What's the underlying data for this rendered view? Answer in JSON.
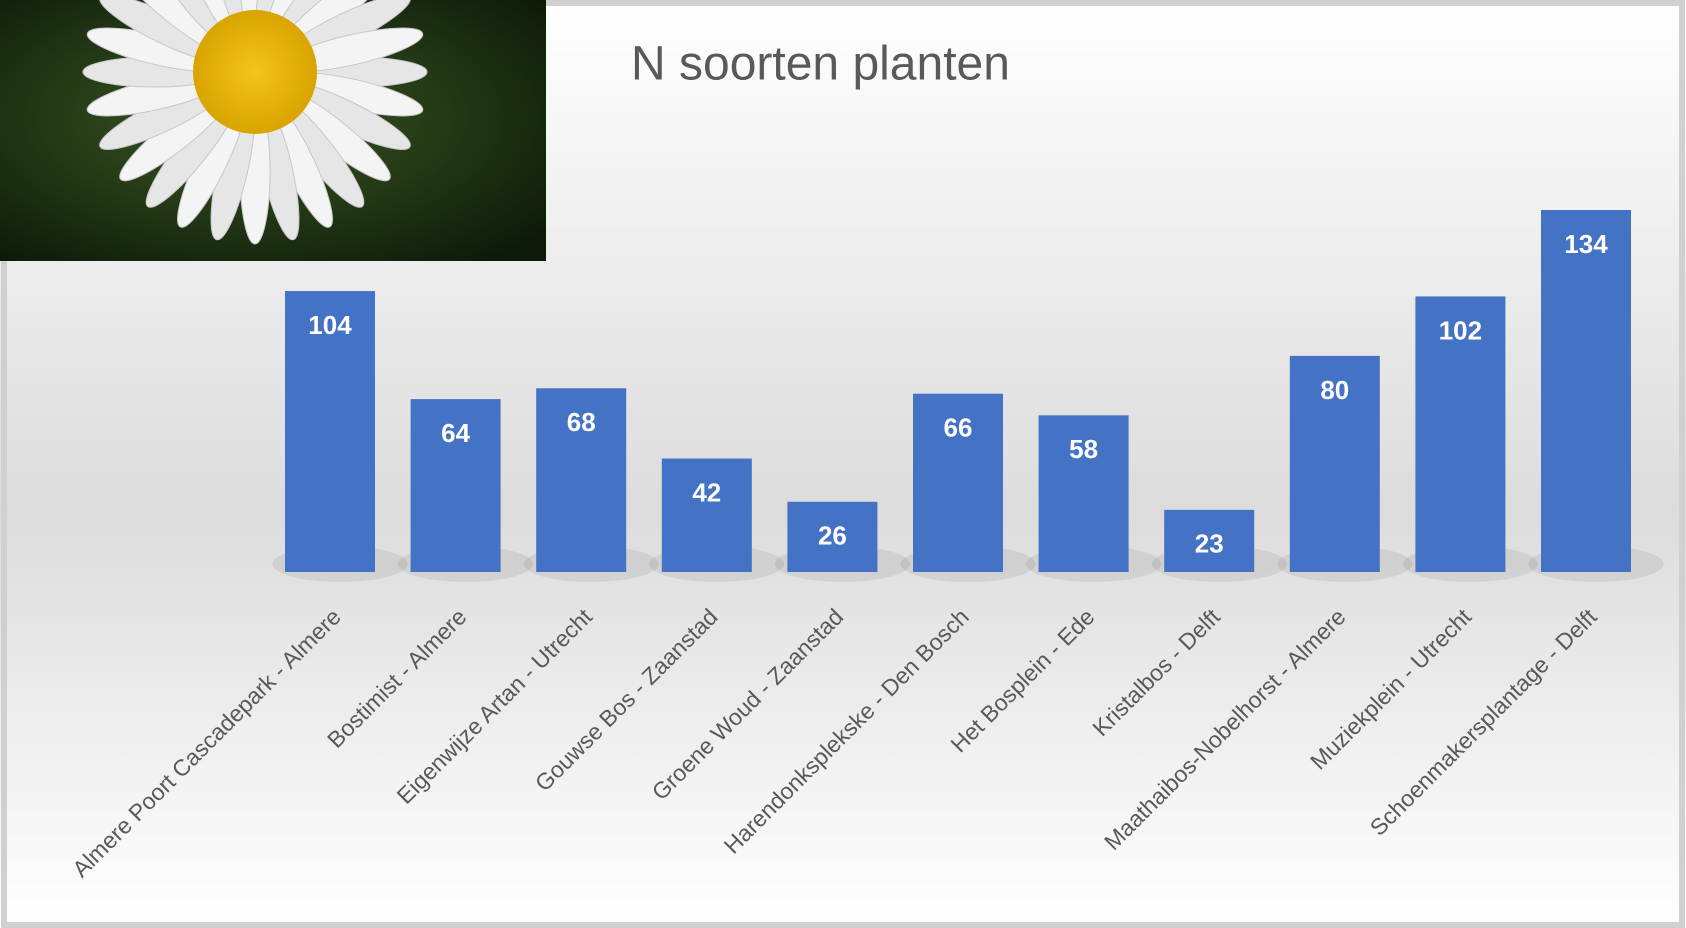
{
  "chart_data": {
    "type": "bar",
    "title": "N soorten planten",
    "categories": [
      "Almere Poort Cascadepark - Almere",
      "Bostimist - Almere",
      "Eigenwijze Artan - Utrecht",
      "Gouwse Bos - Zaanstad",
      "Groene Woud - Zaanstad",
      "Harendonksplekske - Den Bosch",
      "Het Bosplein - Ede",
      "Kristalbos - Delft",
      "Maathaibos-Nobelhorst - Almere",
      "Muziekplein - Utrecht",
      "Schoenmakersplantage - Delft"
    ],
    "values": [
      104,
      64,
      68,
      42,
      26,
      66,
      58,
      23,
      80,
      102,
      134
    ],
    "color": "#4472c4"
  }
}
